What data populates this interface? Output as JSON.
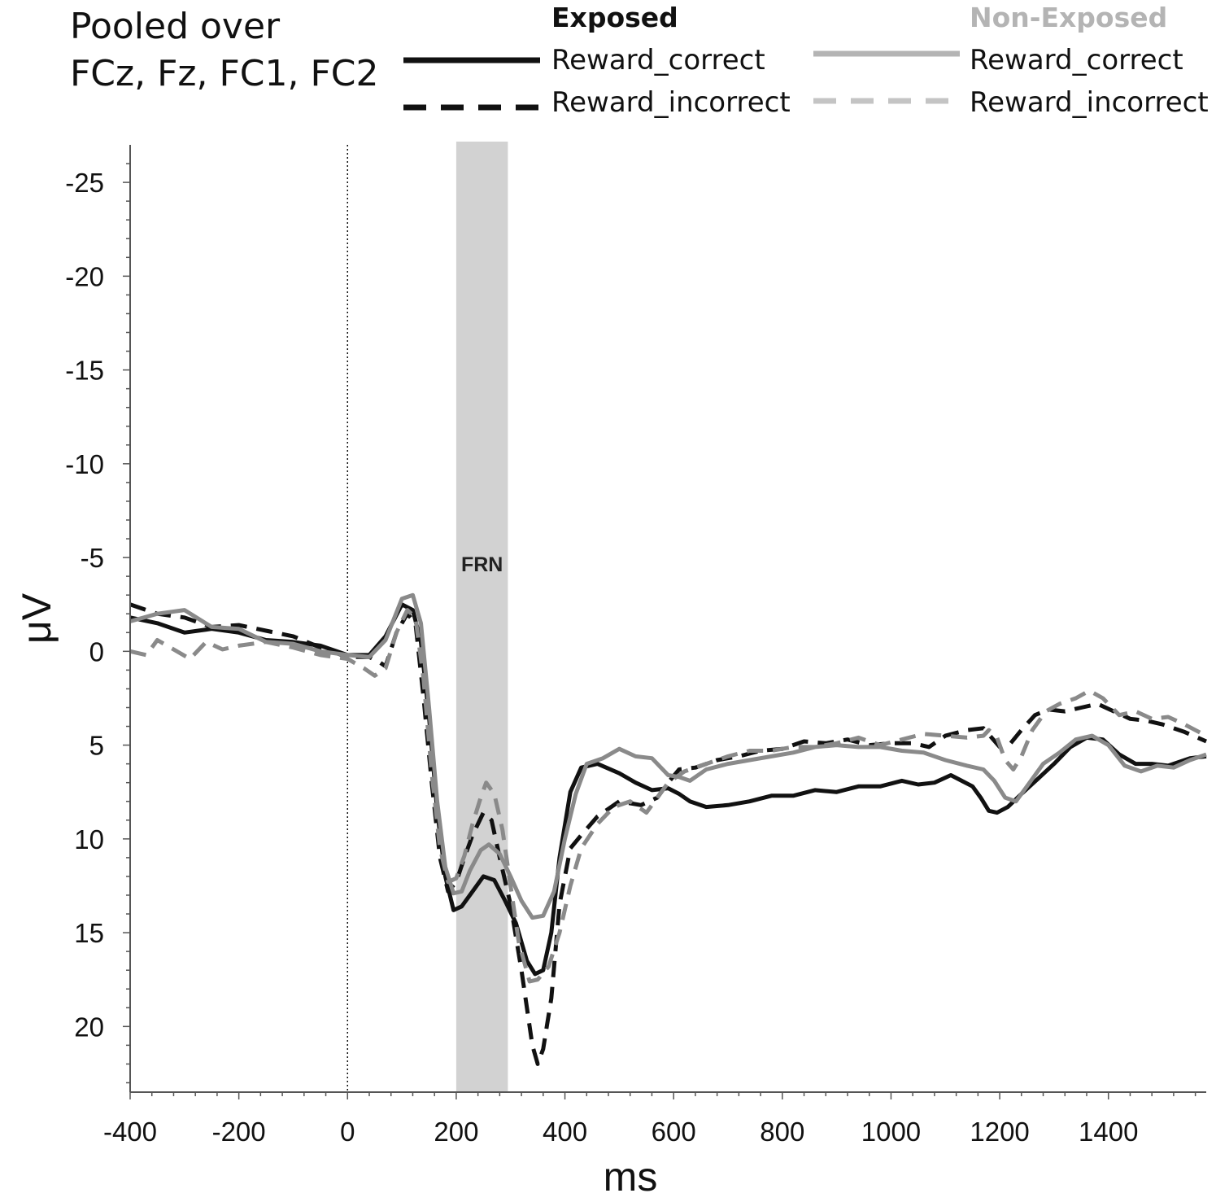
{
  "title_lines": [
    "Pooled over",
    "FCz, Fz, FC1, FC2"
  ],
  "legend": {
    "groups": [
      {
        "name": "Exposed",
        "color": "#111111",
        "items": [
          {
            "label": "Reward_correct",
            "style": "solid"
          },
          {
            "label": "Reward_incorrect",
            "style": "dashed"
          }
        ]
      },
      {
        "name": "Non-Exposed",
        "color": "#b4b4b4",
        "items": [
          {
            "label": "Reward_correct",
            "style": "solid"
          },
          {
            "label": "Reward_incorrect",
            "style": "dashed"
          }
        ]
      }
    ]
  },
  "chart_data": {
    "type": "line",
    "xlabel": "ms",
    "ylabel": "μV",
    "xlim": [
      -400,
      1580
    ],
    "ylim": [
      23.5,
      -27
    ],
    "y_inverted": true,
    "xticks": [
      -400,
      -200,
      0,
      200,
      400,
      600,
      800,
      1000,
      1200,
      1400
    ],
    "yticks": [
      -25,
      -20,
      -15,
      -10,
      -5,
      0,
      5,
      10,
      15,
      20
    ],
    "grid": false,
    "annotations": [
      {
        "type": "shaded_region",
        "x_range": [
          200,
          295
        ],
        "label": "FRN",
        "color": "#d2d2d2"
      },
      {
        "type": "vertical_line",
        "x": 0,
        "style": "dotted"
      }
    ],
    "series": [
      {
        "name": "Exposed Reward_correct",
        "color": "#111111",
        "style": "solid",
        "points": [
          [
            -400,
            -1.8
          ],
          [
            -350,
            -1.5
          ],
          [
            -300,
            -1.0
          ],
          [
            -250,
            -1.2
          ],
          [
            -200,
            -1.0
          ],
          [
            -150,
            -0.6
          ],
          [
            -100,
            -0.5
          ],
          [
            -50,
            -0.3
          ],
          [
            0,
            0.2
          ],
          [
            40,
            0.2
          ],
          [
            70,
            -0.8
          ],
          [
            100,
            -2.5
          ],
          [
            120,
            -2.2
          ],
          [
            135,
            -0.5
          ],
          [
            150,
            3.5
          ],
          [
            165,
            8.5
          ],
          [
            180,
            12.0
          ],
          [
            195,
            13.8
          ],
          [
            210,
            13.6
          ],
          [
            230,
            12.8
          ],
          [
            250,
            12.0
          ],
          [
            270,
            12.2
          ],
          [
            290,
            13.3
          ],
          [
            310,
            14.5
          ],
          [
            330,
            16.5
          ],
          [
            345,
            17.2
          ],
          [
            360,
            17.0
          ],
          [
            375,
            15.0
          ],
          [
            390,
            11.0
          ],
          [
            410,
            7.5
          ],
          [
            430,
            6.2
          ],
          [
            460,
            6.0
          ],
          [
            500,
            6.5
          ],
          [
            530,
            7.0
          ],
          [
            560,
            7.4
          ],
          [
            590,
            7.3
          ],
          [
            610,
            7.6
          ],
          [
            630,
            8.0
          ],
          [
            660,
            8.3
          ],
          [
            700,
            8.2
          ],
          [
            740,
            8.0
          ],
          [
            780,
            7.7
          ],
          [
            820,
            7.7
          ],
          [
            860,
            7.4
          ],
          [
            900,
            7.5
          ],
          [
            940,
            7.2
          ],
          [
            980,
            7.2
          ],
          [
            1020,
            6.9
          ],
          [
            1050,
            7.1
          ],
          [
            1080,
            7.0
          ],
          [
            1110,
            6.6
          ],
          [
            1130,
            6.9
          ],
          [
            1150,
            7.2
          ],
          [
            1165,
            7.8
          ],
          [
            1180,
            8.5
          ],
          [
            1195,
            8.6
          ],
          [
            1215,
            8.3
          ],
          [
            1240,
            7.6
          ],
          [
            1270,
            6.8
          ],
          [
            1300,
            6.0
          ],
          [
            1330,
            5.1
          ],
          [
            1360,
            4.6
          ],
          [
            1390,
            4.7
          ],
          [
            1420,
            5.5
          ],
          [
            1450,
            6.0
          ],
          [
            1480,
            6.0
          ],
          [
            1510,
            6.1
          ],
          [
            1550,
            5.7
          ],
          [
            1580,
            5.6
          ]
        ]
      },
      {
        "name": "Exposed Reward_incorrect",
        "color": "#111111",
        "style": "dashed",
        "points": [
          [
            -400,
            -2.5
          ],
          [
            -350,
            -2.0
          ],
          [
            -300,
            -1.8
          ],
          [
            -250,
            -1.3
          ],
          [
            -200,
            -1.4
          ],
          [
            -150,
            -1.1
          ],
          [
            -100,
            -0.8
          ],
          [
            -50,
            -0.2
          ],
          [
            0,
            0.3
          ],
          [
            40,
            0.3
          ],
          [
            60,
            0.6
          ],
          [
            70,
            0.8
          ],
          [
            90,
            -1.0
          ],
          [
            110,
            -2.0
          ],
          [
            125,
            -1.5
          ],
          [
            140,
            2.5
          ],
          [
            155,
            7.0
          ],
          [
            170,
            11.0
          ],
          [
            185,
            12.8
          ],
          [
            200,
            12.3
          ],
          [
            215,
            11.0
          ],
          [
            230,
            9.8
          ],
          [
            250,
            8.6
          ],
          [
            265,
            9.0
          ],
          [
            280,
            11.0
          ],
          [
            300,
            13.5
          ],
          [
            320,
            17.0
          ],
          [
            340,
            21.0
          ],
          [
            350,
            22.0
          ],
          [
            360,
            21.2
          ],
          [
            375,
            18.5
          ],
          [
            390,
            13.5
          ],
          [
            410,
            10.5
          ],
          [
            430,
            9.8
          ],
          [
            460,
            8.8
          ],
          [
            500,
            8.0
          ],
          [
            540,
            8.2
          ],
          [
            570,
            7.8
          ],
          [
            590,
            7.0
          ],
          [
            610,
            6.3
          ],
          [
            640,
            6.2
          ],
          [
            680,
            5.8
          ],
          [
            720,
            5.6
          ],
          [
            760,
            5.3
          ],
          [
            800,
            5.2
          ],
          [
            840,
            4.8
          ],
          [
            880,
            4.9
          ],
          [
            920,
            4.7
          ],
          [
            960,
            5.0
          ],
          [
            1000,
            4.9
          ],
          [
            1040,
            4.9
          ],
          [
            1070,
            5.1
          ],
          [
            1100,
            4.5
          ],
          [
            1140,
            4.2
          ],
          [
            1170,
            4.1
          ],
          [
            1185,
            4.6
          ],
          [
            1200,
            5.1
          ],
          [
            1220,
            4.9
          ],
          [
            1240,
            4.2
          ],
          [
            1265,
            3.4
          ],
          [
            1290,
            3.1
          ],
          [
            1320,
            3.2
          ],
          [
            1350,
            3.0
          ],
          [
            1380,
            2.8
          ],
          [
            1410,
            3.2
          ],
          [
            1440,
            3.6
          ],
          [
            1470,
            3.7
          ],
          [
            1500,
            3.9
          ],
          [
            1540,
            4.3
          ],
          [
            1580,
            4.8
          ]
        ]
      },
      {
        "name": "Non-Exposed Reward_correct",
        "color": "#8a8a8a",
        "style": "solid",
        "points": [
          [
            -400,
            -1.6
          ],
          [
            -350,
            -2.0
          ],
          [
            -300,
            -2.2
          ],
          [
            -250,
            -1.3
          ],
          [
            -200,
            -1.2
          ],
          [
            -150,
            -0.5
          ],
          [
            -100,
            -0.4
          ],
          [
            -50,
            0.0
          ],
          [
            0,
            0.2
          ],
          [
            40,
            0.3
          ],
          [
            70,
            -0.6
          ],
          [
            100,
            -2.8
          ],
          [
            120,
            -3.0
          ],
          [
            135,
            -1.5
          ],
          [
            150,
            3.0
          ],
          [
            165,
            8.0
          ],
          [
            180,
            11.5
          ],
          [
            195,
            12.9
          ],
          [
            210,
            12.8
          ],
          [
            225,
            11.7
          ],
          [
            245,
            10.6
          ],
          [
            260,
            10.3
          ],
          [
            280,
            10.8
          ],
          [
            300,
            12.0
          ],
          [
            320,
            13.3
          ],
          [
            340,
            14.2
          ],
          [
            360,
            14.1
          ],
          [
            380,
            12.8
          ],
          [
            400,
            10.0
          ],
          [
            420,
            7.6
          ],
          [
            440,
            6.0
          ],
          [
            470,
            5.7
          ],
          [
            500,
            5.2
          ],
          [
            530,
            5.6
          ],
          [
            560,
            5.7
          ],
          [
            590,
            6.6
          ],
          [
            610,
            6.7
          ],
          [
            630,
            6.9
          ],
          [
            660,
            6.3
          ],
          [
            700,
            6.0
          ],
          [
            740,
            5.8
          ],
          [
            780,
            5.6
          ],
          [
            820,
            5.4
          ],
          [
            860,
            5.1
          ],
          [
            900,
            5.0
          ],
          [
            940,
            5.1
          ],
          [
            980,
            5.1
          ],
          [
            1020,
            5.3
          ],
          [
            1060,
            5.4
          ],
          [
            1100,
            5.8
          ],
          [
            1140,
            6.1
          ],
          [
            1170,
            6.3
          ],
          [
            1190,
            6.9
          ],
          [
            1210,
            7.8
          ],
          [
            1230,
            8.0
          ],
          [
            1250,
            7.2
          ],
          [
            1280,
            6.0
          ],
          [
            1310,
            5.4
          ],
          [
            1340,
            4.7
          ],
          [
            1370,
            4.5
          ],
          [
            1400,
            5.0
          ],
          [
            1430,
            6.1
          ],
          [
            1460,
            6.4
          ],
          [
            1490,
            6.1
          ],
          [
            1520,
            6.2
          ],
          [
            1550,
            5.8
          ],
          [
            1580,
            5.5
          ]
        ]
      },
      {
        "name": "Non-Exposed Reward_incorrect",
        "color": "#8a8a8a",
        "style": "dashed",
        "points": [
          [
            -400,
            0.0
          ],
          [
            -370,
            0.2
          ],
          [
            -350,
            -0.6
          ],
          [
            -320,
            -0.1
          ],
          [
            -290,
            0.4
          ],
          [
            -260,
            -0.5
          ],
          [
            -230,
            -0.1
          ],
          [
            -200,
            -0.3
          ],
          [
            -150,
            -0.5
          ],
          [
            -100,
            -0.2
          ],
          [
            -50,
            0.2
          ],
          [
            0,
            0.4
          ],
          [
            30,
            0.9
          ],
          [
            50,
            1.3
          ],
          [
            70,
            0.9
          ],
          [
            90,
            -1.0
          ],
          [
            110,
            -2.2
          ],
          [
            125,
            -1.8
          ],
          [
            140,
            1.5
          ],
          [
            155,
            6.5
          ],
          [
            170,
            10.5
          ],
          [
            185,
            12.3
          ],
          [
            200,
            12.1
          ],
          [
            215,
            10.9
          ],
          [
            230,
            9.2
          ],
          [
            245,
            7.8
          ],
          [
            255,
            7.0
          ],
          [
            270,
            7.6
          ],
          [
            285,
            9.5
          ],
          [
            300,
            12.5
          ],
          [
            315,
            15.5
          ],
          [
            335,
            17.6
          ],
          [
            350,
            17.5
          ],
          [
            370,
            16.8
          ],
          [
            390,
            15.0
          ],
          [
            410,
            12.5
          ],
          [
            430,
            10.5
          ],
          [
            460,
            9.2
          ],
          [
            490,
            8.3
          ],
          [
            520,
            8.0
          ],
          [
            550,
            8.6
          ],
          [
            570,
            7.8
          ],
          [
            590,
            7.0
          ],
          [
            620,
            6.4
          ],
          [
            660,
            6.0
          ],
          [
            700,
            5.6
          ],
          [
            740,
            5.3
          ],
          [
            780,
            5.3
          ],
          [
            820,
            5.1
          ],
          [
            860,
            5.1
          ],
          [
            900,
            4.9
          ],
          [
            940,
            4.6
          ],
          [
            980,
            5.0
          ],
          [
            1020,
            4.7
          ],
          [
            1060,
            4.4
          ],
          [
            1100,
            4.5
          ],
          [
            1140,
            4.6
          ],
          [
            1170,
            4.5
          ],
          [
            1180,
            4.2
          ],
          [
            1195,
            4.6
          ],
          [
            1210,
            5.8
          ],
          [
            1225,
            6.3
          ],
          [
            1240,
            5.6
          ],
          [
            1260,
            4.2
          ],
          [
            1285,
            3.2
          ],
          [
            1310,
            2.8
          ],
          [
            1340,
            2.5
          ],
          [
            1365,
            2.1
          ],
          [
            1390,
            2.5
          ],
          [
            1420,
            3.4
          ],
          [
            1450,
            3.2
          ],
          [
            1480,
            3.6
          ],
          [
            1510,
            3.5
          ],
          [
            1540,
            3.9
          ],
          [
            1580,
            4.5
          ]
        ]
      }
    ]
  }
}
